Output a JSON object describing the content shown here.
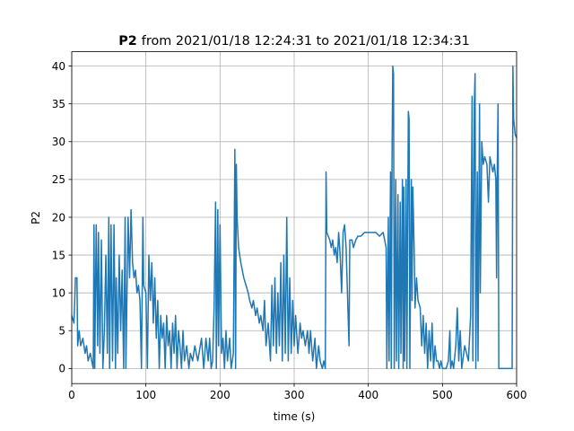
{
  "chart_data": {
    "type": "line",
    "title_name": "P2",
    "title": "from 2021/01/18 12:24:31 to 2021/01/18 12:34:31",
    "xlabel": "time (s)",
    "ylabel": "P2",
    "xlim": [
      0,
      600
    ],
    "xticks": [
      0,
      100,
      200,
      300,
      400,
      500,
      600
    ],
    "ylim": [
      -2,
      41.9
    ],
    "yticks": [
      0,
      5,
      10,
      15,
      20,
      25,
      30,
      35,
      40
    ],
    "grid": true,
    "x": [
      0,
      3,
      5,
      7,
      8,
      10,
      12,
      15,
      18,
      20,
      22,
      25,
      27,
      29,
      30,
      31,
      33,
      35,
      36,
      38,
      40,
      42,
      44,
      46,
      48,
      50,
      51,
      53,
      55,
      57,
      59,
      60,
      62,
      64,
      66,
      68,
      70,
      72,
      73,
      76,
      78,
      80,
      82,
      84,
      86,
      88,
      90,
      92,
      94,
      96,
      97,
      100,
      102,
      104,
      106,
      108,
      110,
      112,
      114,
      116,
      118,
      120,
      122,
      124,
      126,
      128,
      130,
      132,
      134,
      136,
      138,
      140,
      142,
      144,
      146,
      148,
      150,
      152,
      155,
      158,
      160,
      163,
      166,
      170,
      175,
      178,
      181,
      184,
      186,
      188,
      190,
      192,
      194,
      195,
      197,
      198,
      200,
      202,
      204,
      206,
      208,
      210,
      213,
      215,
      218,
      220,
      221,
      222,
      223,
      225,
      228,
      230,
      232,
      235,
      238,
      240,
      243,
      245,
      248,
      250,
      253,
      255,
      258,
      260,
      262,
      265,
      268,
      270,
      272,
      274,
      276,
      278,
      280,
      282,
      284,
      286,
      288,
      290,
      292,
      294,
      296,
      298,
      300,
      302,
      305,
      308,
      310,
      312,
      315,
      318,
      320,
      322,
      325,
      328,
      330,
      333,
      335,
      338,
      340,
      342,
      343,
      344,
      348,
      350,
      352,
      354,
      356,
      358,
      360,
      362,
      364,
      366,
      368,
      370,
      374,
      375,
      378,
      380,
      383,
      386,
      390,
      395,
      400,
      405,
      410,
      415,
      420,
      422,
      424,
      425,
      427,
      428,
      430,
      431,
      432,
      433,
      434,
      435,
      437,
      438,
      440,
      441,
      443,
      444,
      446,
      447,
      448,
      449,
      451,
      452,
      454,
      455,
      456,
      458,
      459,
      460,
      462,
      463,
      465,
      467,
      470,
      472,
      474,
      476,
      478,
      480,
      482,
      484,
      486,
      488,
      490,
      492,
      494,
      496,
      498,
      500,
      505,
      508,
      510,
      511,
      513,
      515,
      518,
      520,
      522,
      524,
      526,
      530,
      535,
      538,
      540,
      541,
      543,
      544,
      545,
      547,
      548,
      550,
      551,
      553,
      555,
      557,
      560,
      562,
      564,
      566,
      568,
      570,
      572,
      573,
      574,
      575,
      576,
      594,
      595,
      596,
      598,
      600
    ],
    "series": [
      {
        "name": "P2",
        "color": "#1f77b4",
        "values": [
          7,
          6,
          12,
          12,
          3,
          5,
          3,
          4,
          2,
          3,
          1,
          2,
          1,
          0,
          19,
          0,
          19,
          3,
          18,
          2,
          17,
          0,
          5,
          15,
          2,
          20,
          0,
          19,
          1,
          19,
          0,
          12,
          2,
          15,
          5,
          13,
          0,
          20,
          0,
          20,
          12,
          21,
          14,
          12,
          13,
          10,
          11,
          9,
          0,
          20,
          11,
          10,
          0,
          15,
          9,
          14,
          6,
          12,
          4,
          9,
          0,
          7,
          4,
          6,
          0,
          7,
          3,
          5,
          0,
          6,
          2,
          7,
          0,
          5,
          3,
          0,
          5,
          1,
          3,
          0,
          2,
          1,
          3,
          1,
          4,
          0,
          4,
          1,
          4,
          0,
          1,
          8,
          22,
          0,
          21,
          3,
          19,
          2,
          4,
          0,
          5,
          1,
          4,
          0,
          2,
          29,
          0,
          27,
          20,
          16,
          14,
          13,
          12,
          11,
          10,
          9,
          8,
          9,
          7,
          8,
          6,
          7,
          5,
          9,
          3,
          6,
          1,
          11,
          3,
          12,
          2,
          10,
          3,
          14,
          1,
          15,
          2,
          20,
          1,
          12,
          2,
          9,
          3,
          7,
          2,
          6,
          4,
          5,
          3,
          5,
          2,
          5,
          1,
          4,
          0,
          3,
          1,
          0,
          1,
          0,
          26,
          18,
          17,
          16,
          17,
          15,
          16,
          14,
          18,
          15,
          10,
          18,
          19,
          16,
          3,
          17,
          17,
          16,
          17,
          17.5,
          17.5,
          18,
          18,
          18,
          18,
          17.5,
          18,
          17,
          16,
          0,
          20,
          1,
          26,
          0,
          28,
          40,
          39,
          0,
          25,
          1,
          23,
          0,
          22,
          2,
          25,
          0,
          24,
          1,
          25,
          0,
          34,
          33,
          0,
          25,
          9,
          24,
          15,
          8,
          12,
          9,
          8,
          3,
          7,
          2,
          6,
          0,
          5,
          1,
          6,
          0,
          3,
          1,
          1,
          0,
          1,
          0,
          0,
          1,
          5,
          0,
          1,
          0,
          3,
          8,
          1,
          5,
          0,
          3,
          1,
          7,
          36,
          1,
          35,
          39,
          0,
          26,
          1,
          35,
          10,
          30,
          27,
          28,
          27,
          22,
          28,
          27,
          26,
          27,
          25,
          12,
          27,
          35,
          0,
          0,
          40,
          33,
          31,
          30.5
        ]
      }
    ]
  }
}
